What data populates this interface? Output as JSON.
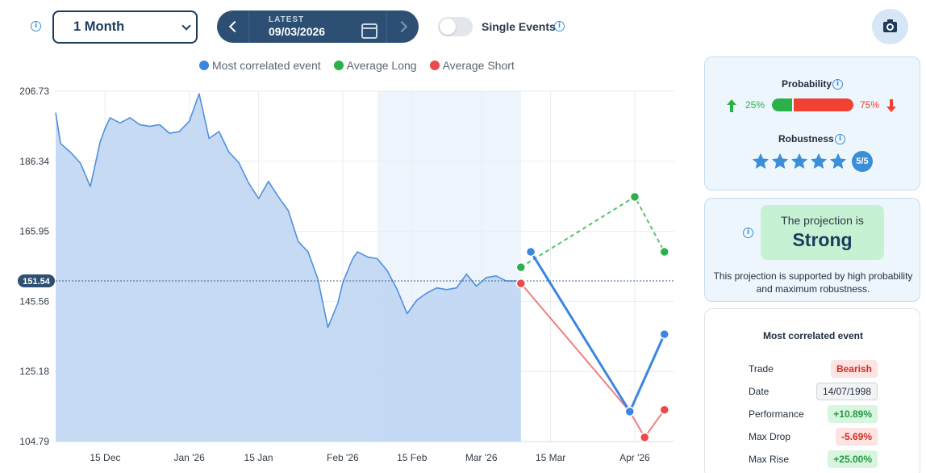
{
  "toolbar": {
    "period_select": "1 Month",
    "date_label": "LATEST",
    "date_value": "09/03/2026",
    "single_events_label": "Single Events",
    "single_events_on": false
  },
  "legend": [
    {
      "label": "Most correlated event",
      "color": "#3a86e0"
    },
    {
      "label": "Average Long",
      "color": "#2bb14a"
    },
    {
      "label": "Average Short",
      "color": "#ea4a4a"
    }
  ],
  "chart_data": {
    "type": "area",
    "y_ticks": [
      "206.73",
      "186.34",
      "165.95",
      "145.56",
      "125.18",
      "104.79"
    ],
    "x_ticks": [
      "15 Dec",
      "Jan '26",
      "15 Jan",
      "Feb '26",
      "15 Feb",
      "Mar '26",
      "15 Mar",
      "Apr '26"
    ],
    "ylim": [
      104.79,
      206.73
    ],
    "current_value_label": "151.54",
    "current_value": 151.54,
    "grid": true,
    "price_series": {
      "name": "Most correlated event",
      "x": [
        "2025-12-05",
        "2025-12-06",
        "2025-12-08",
        "2025-12-10",
        "2025-12-12",
        "2025-12-14",
        "2025-12-15",
        "2025-12-16",
        "2025-12-18",
        "2025-12-20",
        "2025-12-22",
        "2025-12-24",
        "2025-12-26",
        "2025-12-28",
        "2025-12-30",
        "2026-01-01",
        "2026-01-03",
        "2026-01-05",
        "2026-01-07",
        "2026-01-09",
        "2026-01-11",
        "2026-01-13",
        "2026-01-15",
        "2026-01-17",
        "2026-01-19",
        "2026-01-21",
        "2026-01-23",
        "2026-01-25",
        "2026-01-27",
        "2026-01-29",
        "2026-01-31",
        "2026-02-01",
        "2026-02-02",
        "2026-02-03",
        "2026-02-04",
        "2026-02-06",
        "2026-02-08",
        "2026-02-10",
        "2026-02-12",
        "2026-02-14",
        "2026-02-16",
        "2026-02-18",
        "2026-02-20",
        "2026-02-22",
        "2026-02-24",
        "2026-02-26",
        "2026-02-28",
        "2026-03-02",
        "2026-03-04",
        "2026-03-06",
        "2026-03-09"
      ],
      "y": [
        200.5,
        191.5,
        189.0,
        185.8,
        179.0,
        192.0,
        196.0,
        199.0,
        197.5,
        199.0,
        197.0,
        196.5,
        197.0,
        194.5,
        195.0,
        198.0,
        206.0,
        193.0,
        195.0,
        189.0,
        186.0,
        180.0,
        175.5,
        180.5,
        176.0,
        172.0,
        163.0,
        160.0,
        152.0,
        138.0,
        145.0,
        151.0,
        154.5,
        158.0,
        160.0,
        158.5,
        158.0,
        154.5,
        149.0,
        142.0,
        146.0,
        148.0,
        149.5,
        149.0,
        149.5,
        153.5,
        150.0,
        152.5,
        153.0,
        151.5,
        151.5
      ]
    },
    "projections": [
      {
        "name": "Most correlated event",
        "color": "#3a86e0",
        "x": [
          "2026-03-11",
          "2026-03-31",
          "2026-04-07"
        ],
        "y": [
          160.0,
          113.5,
          136.0
        ],
        "dashed": false
      },
      {
        "name": "Average Long",
        "color": "#2bb14a",
        "x": [
          "2026-03-09",
          "2026-04-01",
          "2026-04-07"
        ],
        "y": [
          155.5,
          176.0,
          160.0
        ],
        "dashed": true
      },
      {
        "name": "Average Short",
        "color": "#ea4a4a",
        "x": [
          "2026-03-09",
          "2026-03-31",
          "2026-04-03",
          "2026-04-07"
        ],
        "y": [
          150.8,
          113.5,
          106.0,
          114.0
        ],
        "dashed": false
      }
    ],
    "highlight_range": [
      "2026-02-08",
      "2026-03-09"
    ]
  },
  "probability": {
    "title": "Probability",
    "long_pct": "25%",
    "short_pct": "75%",
    "long_fraction": 0.25
  },
  "robustness": {
    "title": "Robustness",
    "stars": 5,
    "badge": "5/5"
  },
  "projection": {
    "lead": "The projection is",
    "strength": "Strong",
    "description": "This projection is supported by high probability and maximum robustness."
  },
  "event": {
    "title": "Most correlated event",
    "rows": [
      {
        "key": "Trade",
        "value": "Bearish"
      },
      {
        "key": "Date",
        "value": "14/07/1998"
      },
      {
        "key": "Performance",
        "value": "+10.89%"
      },
      {
        "key": "Max Drop",
        "value": "-5.69%"
      },
      {
        "key": "Max Rise",
        "value": "+25.00%"
      }
    ]
  },
  "colors": {
    "accent": "#3a86e0",
    "navy": "#1d3b5c",
    "long": "#2bb14a",
    "short": "#ea4a4a"
  }
}
